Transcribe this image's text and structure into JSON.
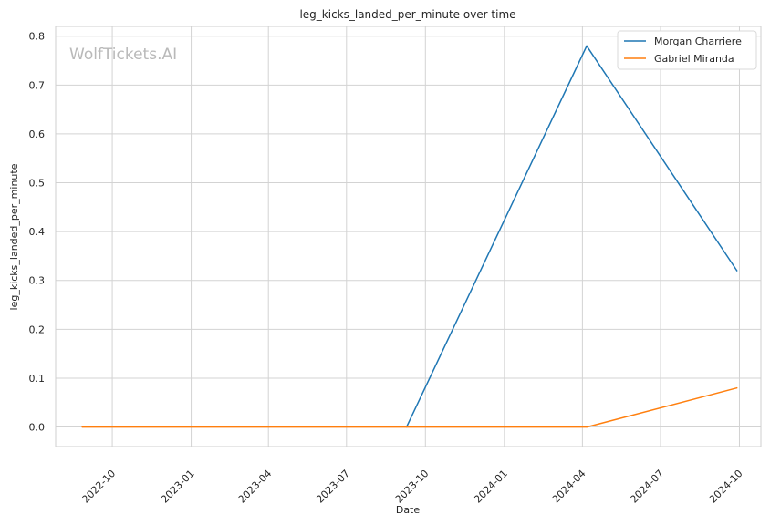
{
  "chart_data": {
    "type": "line",
    "title": "leg_kicks_landed_per_minute over time",
    "xlabel": "Date",
    "ylabel": "leg_kicks_landed_per_minute",
    "watermark": "WolfTickets.AI",
    "x_ticks": [
      "2022-10",
      "2023-01",
      "2023-04",
      "2023-07",
      "2023-10",
      "2024-01",
      "2024-04",
      "2024-07",
      "2024-10"
    ],
    "y_ticks": [
      "0.0",
      "0.1",
      "0.2",
      "0.3",
      "0.4",
      "0.5",
      "0.6",
      "0.7",
      "0.8"
    ],
    "xlim": [
      "2022-07-27",
      "2024-10-26"
    ],
    "ylim": [
      -0.04,
      0.82
    ],
    "grid": true,
    "legend_position": "top-right",
    "series": [
      {
        "name": "Morgan Charriere",
        "color": "#1f77b4",
        "points": [
          {
            "x": "2023-09-09",
            "y": 0.0
          },
          {
            "x": "2024-04-06",
            "y": 0.78
          },
          {
            "x": "2024-09-28",
            "y": 0.32
          }
        ]
      },
      {
        "name": "Gabriel Miranda",
        "color": "#ff7f0e",
        "points": [
          {
            "x": "2022-08-27",
            "y": 0.0
          },
          {
            "x": "2024-04-06",
            "y": 0.0
          },
          {
            "x": "2024-09-28",
            "y": 0.08
          }
        ]
      }
    ]
  }
}
